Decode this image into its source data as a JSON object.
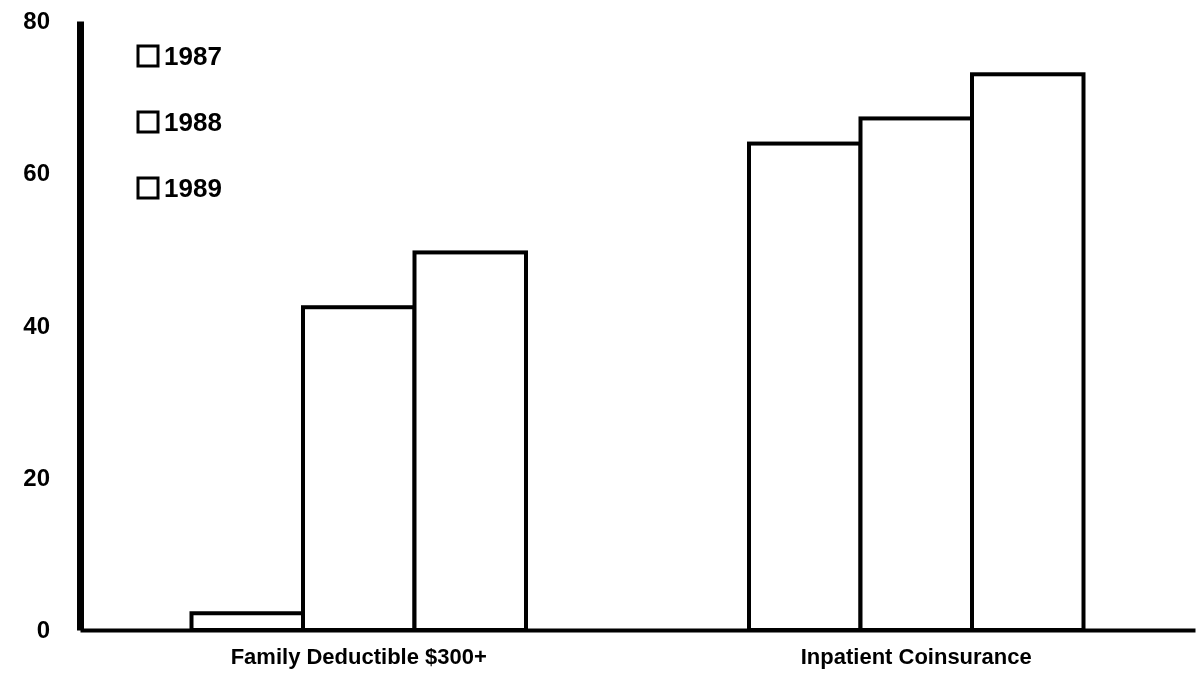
{
  "chart_data": {
    "type": "bar",
    "categories": [
      "Family Deductible $300+",
      "Inpatient Coinsurance"
    ],
    "series": [
      {
        "name": "1987",
        "color": "#ffffff",
        "values": [
          2.2,
          63.9
        ]
      },
      {
        "name": "1988",
        "color": "#ffffff",
        "values": [
          42.4,
          67.2
        ]
      },
      {
        "name": "1989",
        "color": "#ffffff",
        "values": [
          49.6,
          73
        ]
      }
    ],
    "ylim": [
      0,
      80
    ],
    "yticks": [
      0,
      20,
      40,
      60,
      80
    ],
    "legend": "top left",
    "grid": false
  }
}
